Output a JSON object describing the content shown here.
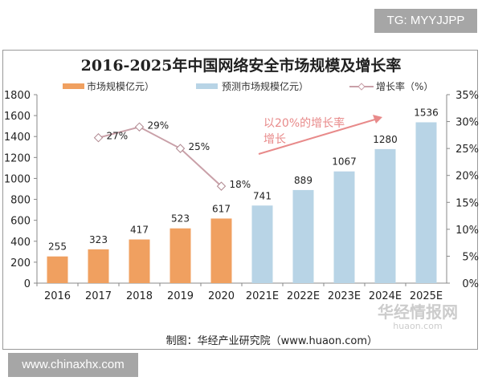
{
  "watermarks": {
    "top": "TG: MYYJJPP",
    "bottom": "www.chinaxhx.com",
    "logo": "华经情报网",
    "logo_sub": "huaon.com"
  },
  "credit": "制图：华经产业研究院（www.huaon.com）",
  "annotation": {
    "line1": "以20%的增长率",
    "line2": "增长"
  },
  "chart_data": {
    "type": "bar",
    "title": "2016-2025年中国网络安全市场规模及增长率",
    "categories": [
      "2016",
      "2017",
      "2018",
      "2019",
      "2020",
      "2021E",
      "2022E",
      "2023E",
      "2024E",
      "2025E"
    ],
    "series": [
      {
        "name": "市场规模亿元）",
        "type": "bar",
        "axis": "left",
        "color": "#f0a060",
        "values": [
          255,
          323,
          417,
          523,
          617,
          null,
          null,
          null,
          null,
          null
        ]
      },
      {
        "name": "预测市场规模亿元）",
        "type": "bar",
        "axis": "left",
        "color": "#b8d4e6",
        "values": [
          null,
          null,
          null,
          null,
          null,
          741,
          889,
          1067,
          1280,
          1536
        ]
      },
      {
        "name": "增长率（%）",
        "type": "line",
        "axis": "right",
        "color": "#c9a0a8",
        "values": [
          null,
          27,
          29,
          25,
          18,
          null,
          null,
          null,
          null,
          null
        ],
        "labels": [
          "",
          "27%",
          "29%",
          "25%",
          "18%",
          "",
          "",
          "",
          "",
          ""
        ]
      }
    ],
    "y_left": {
      "min": 0,
      "max": 1800,
      "ticks": [
        "0",
        "200",
        "400",
        "600",
        "800",
        "1000",
        "1200",
        "1400",
        "1600",
        "1800"
      ]
    },
    "y_right": {
      "min": 0,
      "max": 35,
      "ticks": [
        "0%",
        "5%",
        "10%",
        "15%",
        "20%",
        "25%",
        "30%",
        "35%"
      ]
    },
    "legend": "top",
    "grid": false,
    "annotation_color": "#e88a8a"
  }
}
